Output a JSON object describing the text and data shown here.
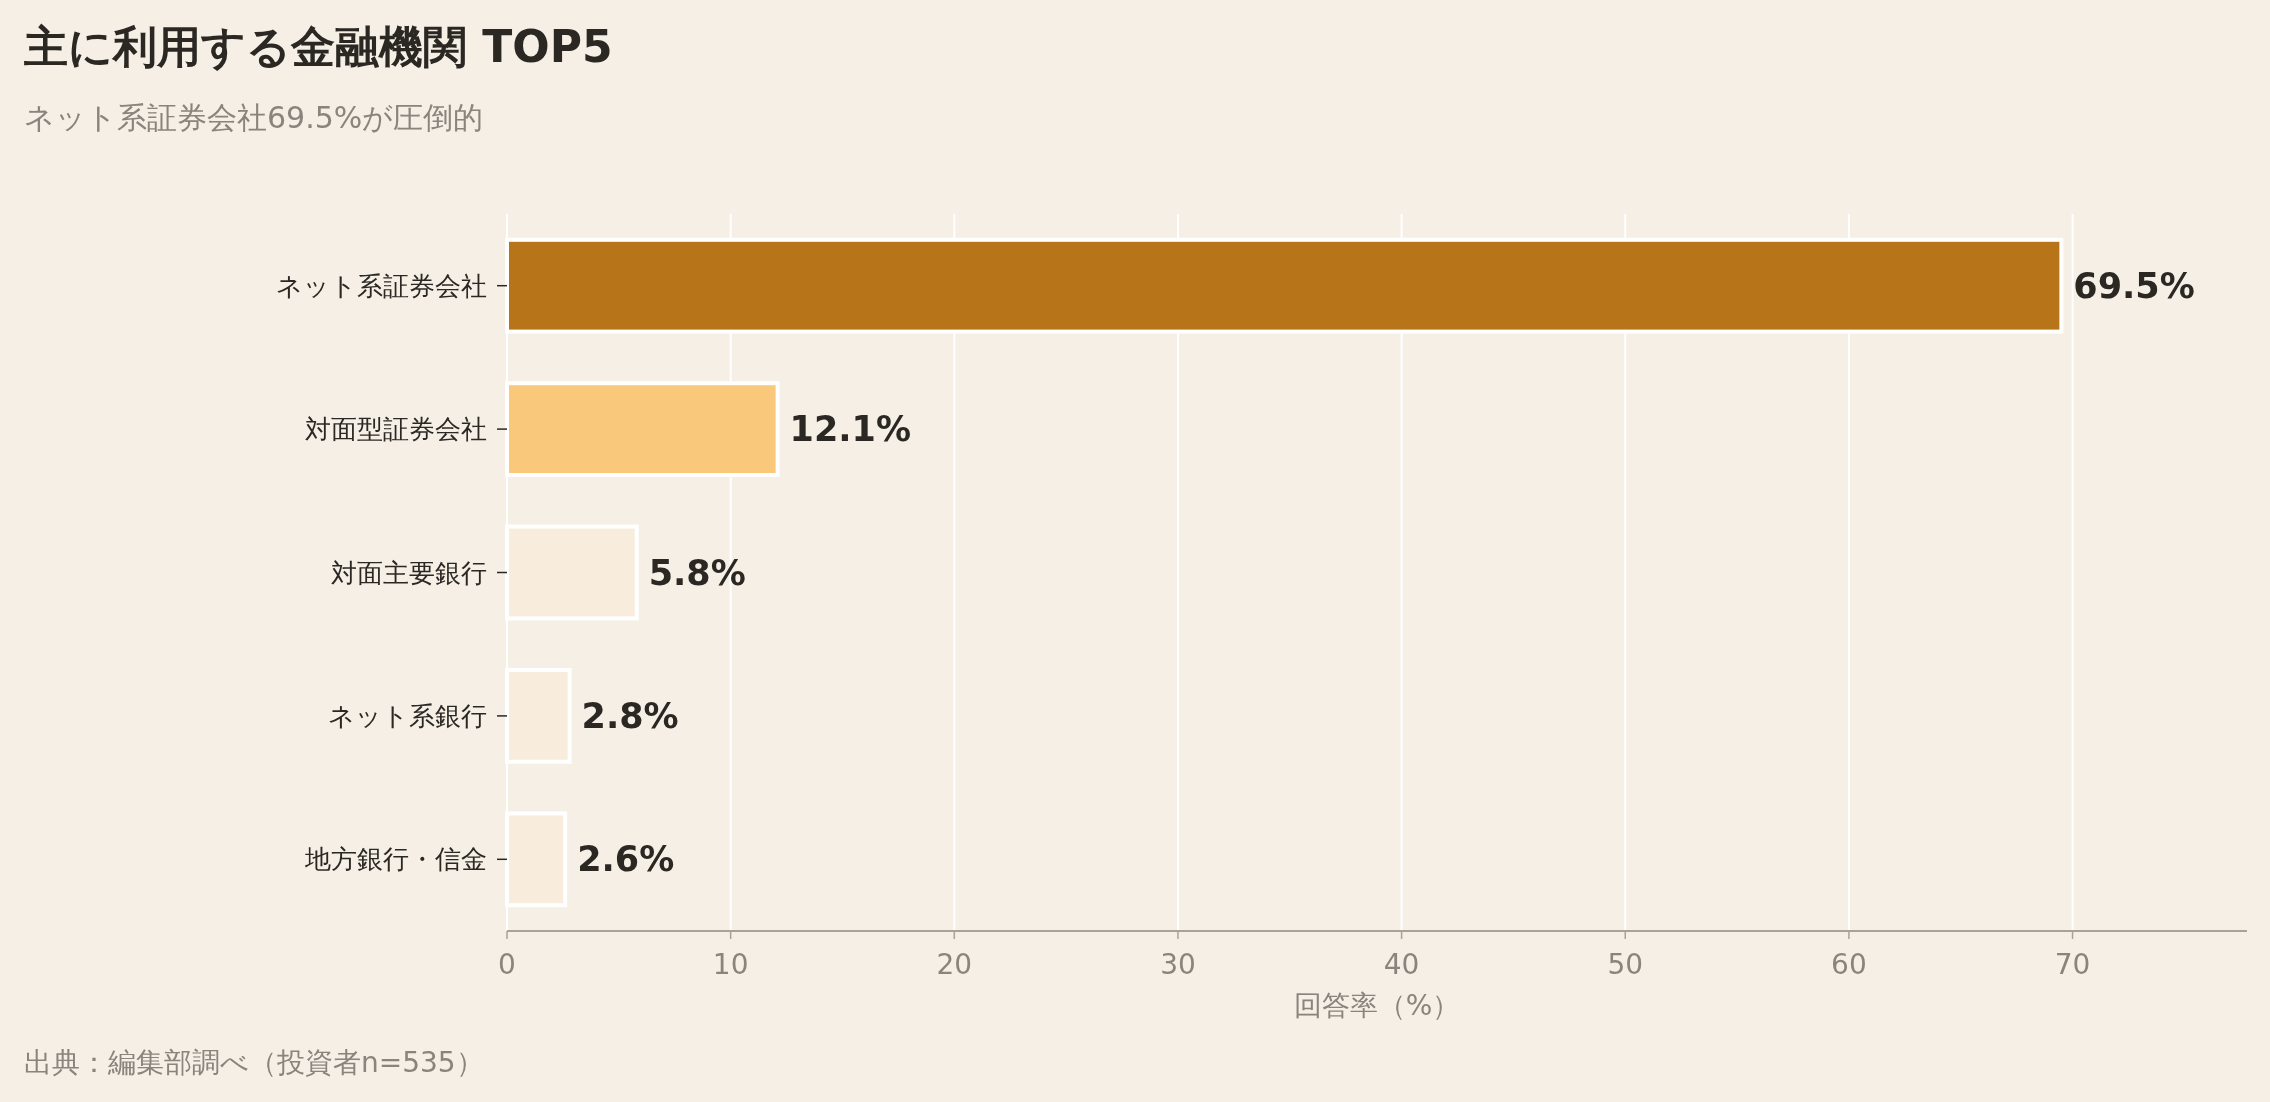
{
  "chart_data": {
    "type": "bar",
    "orientation": "horizontal",
    "title": "主に利用する金融機関 TOP5",
    "subtitle": "ネット系証券会社69.5%が圧倒的",
    "xlabel": "回答率（%）",
    "categories": [
      "ネット系証券会社",
      "対面型証券会社",
      "対面主要銀行",
      "ネット系銀行",
      "地方銀行・信金"
    ],
    "values": [
      69.5,
      12.1,
      5.8,
      2.8,
      2.6
    ],
    "value_labels": [
      "69.5%",
      "12.1%",
      "5.8%",
      "2.8%",
      "2.6%"
    ],
    "colors": [
      "#b87418",
      "#f9c87a",
      "#f8ecdc",
      "#f8ecdc",
      "#f8ecdc"
    ],
    "xlim": [
      0,
      77.8
    ],
    "xticks": [
      0,
      10,
      20,
      30,
      40,
      50,
      60,
      70
    ],
    "grid": "x",
    "annotations": [
      "出典：編集部調べ（投資者n=535）"
    ]
  }
}
